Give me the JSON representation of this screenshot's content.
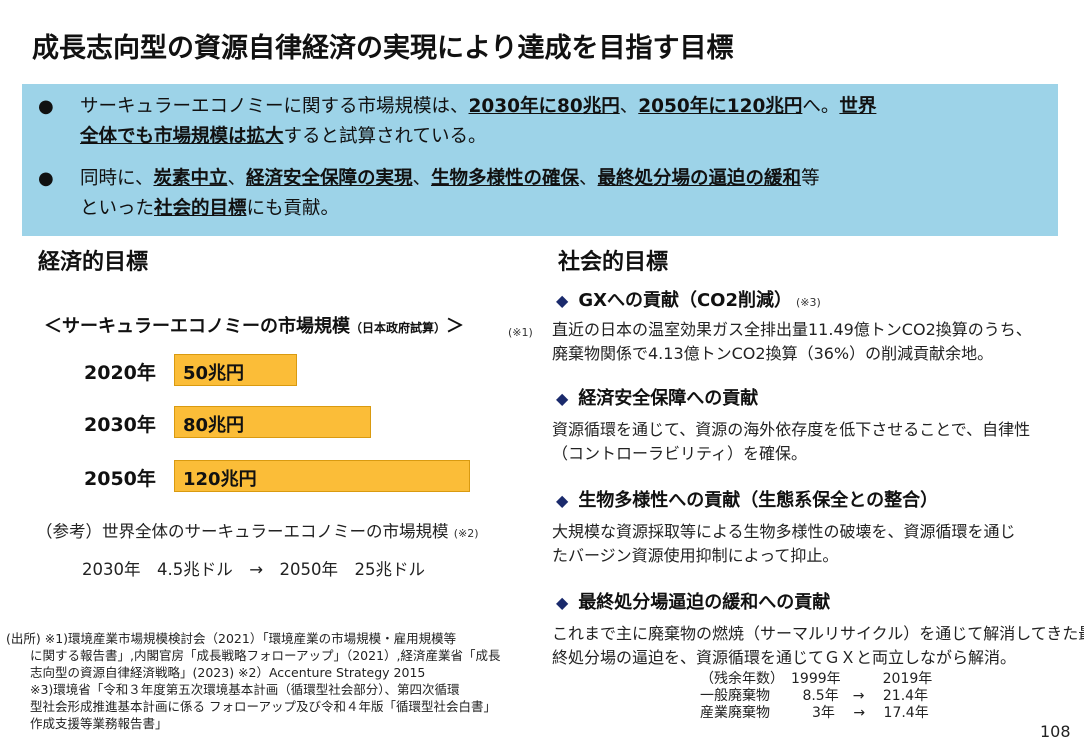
{
  "title": "成長志向型の資源自律経済の実現により達成を目指す目標",
  "summary": {
    "b1_l1": [
      {
        "t": "サーキュラーエコノミーに関する市場規模は、",
        "b": false
      },
      {
        "t": "2030年に80兆円",
        "b": true
      },
      {
        "t": "、",
        "b": false
      },
      {
        "t": "2050年に120兆円",
        "b": true
      },
      {
        "t": "へ。",
        "b": false
      },
      {
        "t": "世界",
        "b": true
      }
    ],
    "b1_l2": [
      {
        "t": "全体でも市場規模は拡大",
        "b": true
      },
      {
        "t": "すると試算されている。",
        "b": false
      }
    ],
    "b2_l1": [
      {
        "t": "同時に、",
        "b": false
      },
      {
        "t": "炭素中立",
        "b": true
      },
      {
        "t": "、",
        "b": false
      },
      {
        "t": "経済安全保障の実現",
        "b": true
      },
      {
        "t": "、",
        "b": false
      },
      {
        "t": "生物多様性の確保",
        "b": true
      },
      {
        "t": "、",
        "b": false
      },
      {
        "t": "最終処分場の逼迫の緩和",
        "b": true
      },
      {
        "t": "等",
        "b": false
      }
    ],
    "b2_l2": [
      {
        "t": "といった",
        "b": false
      },
      {
        "t": "社会的目標",
        "b": true
      },
      {
        "t": "にも貢献。",
        "b": false
      }
    ]
  },
  "econ": {
    "heading": "経済的目標",
    "market_title": "＜サーキュラーエコノミーの市場規模",
    "market_title_small": "（日本政府試算）",
    "market_title_end": "＞",
    "note1": "(※1)",
    "bars": [
      {
        "year": "2020年",
        "label": "50兆円",
        "value": 50
      },
      {
        "year": "2030年",
        "label": "80兆円",
        "value": 80
      },
      {
        "year": "2050年",
        "label": "120兆円",
        "value": 120
      }
    ],
    "ref_title": "（参考）世界全体のサーキュラーエコノミーの市場規模",
    "ref_note": "(※2)",
    "ref_values": "2030年　4.5兆ドル　→　2050年　25兆ドル"
  },
  "sources": [
    "(出所) ※1)環境産業市場規模検討会（2021）「環境産業の市場規模・雇用規模等",
    "に関する報告書」,内閣官房「成長戦略フォローアップ」（2021）,経済産業省「成長",
    "志向型の資源自律経済戦略」(2023) ※2）Accenture Strategy 2015",
    "※3)環境省「令和３年度第五次環境基本計画（循環型社会部分）、第四次循環",
    "型社会形成推進基本計画に係る フォローアップ及び令和４年版「循環型社会白書」",
    "作成支援等業務報告書」"
  ],
  "social": {
    "heading": "社会的目標",
    "s1_title": "GXへの貢献（CO2削減）",
    "s1_note": "(※3)",
    "s1_l1": "直近の日本の温室効果ガス全排出量11.49億トンCO2換算のうち、",
    "s1_l2": "廃棄物関係で4.13億トンCO2換算（36%）の削減貢献余地。",
    "s2_title": "経済安全保障への貢献",
    "s2_l1": "資源循環を通じて、資源の海外依存度を低下させることで、自律性",
    "s2_l2": "（コントローラビリティ）を確保。",
    "s3_title": "生物多様性への貢献（生態系保全との整合）",
    "s3_l1": "大規模な資源採取等による生物多様性の破壊を、資源循環を通じ",
    "s3_l2": "たバージン資源使用抑制によって抑止。",
    "s4_title": "最終処分場逼迫の緩和への貢献",
    "s4_l1": "これまで主に廃棄物の燃焼（サーマルリサイクル）を通じて解消してきた最",
    "s4_l2": "終処分場の逼迫を、資源循環を通じてＧＸと両立しながら解消。",
    "remaining": [
      "（残余年数）　1999年　　　2019年",
      "一般廃棄物　　 8.5年　→　 21.4年",
      "産業廃棄物　　　3年　 →　 17.4年"
    ]
  },
  "page_number": "108",
  "colors": {
    "summary_bg": "#9dd3e8",
    "bar_fill": "#fbbd38",
    "diamond": "#1a2a6c"
  }
}
